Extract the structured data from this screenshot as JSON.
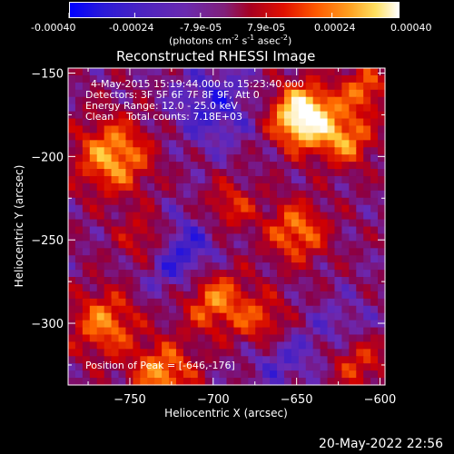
{
  "colorbar": {
    "tick_labels": [
      "-0.00040",
      "-0.00024",
      "-7.9e-05",
      "7.9e-05",
      "0.00024",
      "0.00040"
    ],
    "unit_label": "(photons cm",
    "unit_sup1": "-2",
    "unit_mid1": " s",
    "unit_sup2": "-1",
    "unit_mid2": " asec",
    "unit_sup3": "-2",
    "unit_end": ")",
    "range": [
      -0.0004,
      0.0004
    ]
  },
  "annotations": {
    "time_range": "4-May-2015 15:19:44.000 to 15:23:40.000",
    "detectors": "Detectors: 3F 5F 6F 7F 8F 9F, Att 0",
    "energy_range": "Energy Range: 12.0 - 25.0 keV",
    "clean_total": "Clean    Total counts: 7.18E+03",
    "peak_position": "Position of Peak = [-646,-176]"
  },
  "footer": {
    "timestamp": "20-May-2022 22:56"
  },
  "chart_data": {
    "type": "heatmap",
    "title": "Reconstructed RHESSI Image",
    "xlabel": "Heliocentric X (arcsec)",
    "ylabel": "Heliocentric Y (arcsec)",
    "xlim": [
      -787,
      -597
    ],
    "ylim": [
      -337,
      -147
    ],
    "x_ticks": [
      -750,
      -700,
      -650,
      -600
    ],
    "y_ticks": [
      -150,
      -200,
      -250,
      -300
    ],
    "x_tick_labels": [
      "−750",
      "−700",
      "−650",
      "−600"
    ],
    "y_tick_labels": [
      "−150",
      "−200",
      "−250",
      "−300"
    ],
    "value_range": [
      -0.0004,
      0.0004
    ],
    "colormap": [
      "#0000ff",
      "#3c1ec8",
      "#6a2ab6",
      "#8a0046",
      "#d20000",
      "#ff6a00",
      "#ffd040",
      "#ffffff"
    ],
    "peak": [
      -646,
      -176
    ],
    "grid": false
  }
}
